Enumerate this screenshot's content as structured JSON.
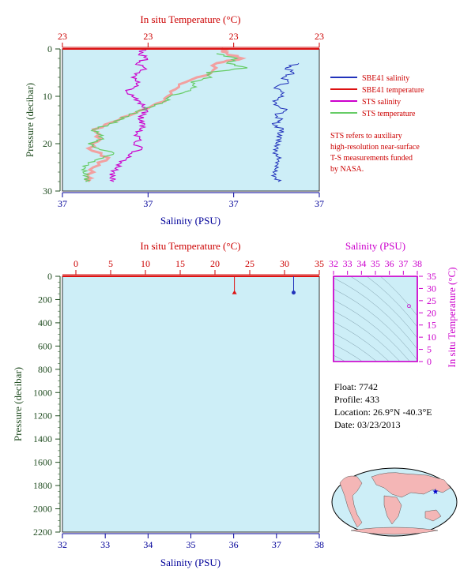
{
  "colors": {
    "plot_bg": "#cdeef7",
    "temp_axis": "#cc0000",
    "sal_axis": "#000099",
    "pressure_axis": "#214d21",
    "sbe_sal": "#2233bb",
    "sbe_temp": "#dd1111",
    "sts_sal": "#cc00cc",
    "sts_temp": "#66cc66",
    "sts_temp_shade": "#f2a0a0",
    "ts_frame": "#cc00cc"
  },
  "top_chart": {
    "temp_axis_title": "In situ Temperature (°C)",
    "temp_ticks": [
      "23",
      "23",
      "23",
      "23"
    ],
    "sal_axis_title": "Salinity (PSU)",
    "sal_ticks": [
      "37",
      "37",
      "37",
      "37"
    ],
    "pressure_axis_title": "Pressure (decibar)",
    "pressure_ticks": [
      "0",
      "10",
      "20",
      "30"
    ]
  },
  "legend": {
    "items": [
      "SBE41 salinity",
      "SBE41 temperature",
      "STS salinity",
      "STS temperature"
    ],
    "note_lines": [
      "STS refers to auxiliary",
      "high-resolution near-surface",
      "T-S measurements funded",
      "by NASA."
    ]
  },
  "bottom_chart": {
    "temp_axis_title": "In situ Temperature (°C)",
    "temp_ticks": [
      "0",
      "5",
      "10",
      "15",
      "20",
      "25",
      "30",
      "35"
    ],
    "sal_axis_title": "Salinity (PSU)",
    "sal_ticks": [
      "32",
      "33",
      "34",
      "35",
      "36",
      "37",
      "38"
    ],
    "pressure_axis_title": "Pressure (decibar)",
    "pressure_ticks": [
      "0",
      "200",
      "400",
      "600",
      "800",
      "1000",
      "1200",
      "1400",
      "1600",
      "1800",
      "2000",
      "2200"
    ]
  },
  "ts_chart": {
    "sal_axis_title": "Salinity (PSU)",
    "sal_ticks": [
      "32",
      "33",
      "34",
      "35",
      "36",
      "37",
      "38"
    ],
    "temp_axis_title": "In situ Temperature (°C)",
    "temp_ticks": [
      "0",
      "5",
      "10",
      "15",
      "20",
      "25",
      "30",
      "35"
    ]
  },
  "info": {
    "float_line": "Float:  7742",
    "profile_line": "Profile:  433",
    "location_line": "Location:  26.9°N  -40.3°E",
    "date_line": "Date:  03/23/2013"
  },
  "chart_data": [
    {
      "type": "line",
      "title": "",
      "xlabel": "Salinity (PSU)",
      "x2label": "In situ Temperature (°C)",
      "ylabel": "Pressure (decibar)",
      "ylim": [
        30,
        0
      ],
      "series": [
        {
          "name": "SBE41 salinity",
          "pressure": [
            3,
            4,
            5,
            6,
            7,
            8,
            9,
            10,
            11,
            12,
            13,
            14,
            15,
            16,
            17,
            18,
            19,
            20,
            21,
            22,
            23,
            24,
            25,
            26,
            27,
            28
          ],
          "rel_value": [
            0.92,
            0.87,
            0.9,
            0.86,
            0.88,
            0.83,
            0.85,
            0.86,
            0.82,
            0.84,
            0.87,
            0.83,
            0.85,
            0.82,
            0.86,
            0.84,
            0.85,
            0.83,
            0.84,
            0.82,
            0.85,
            0.83,
            0.84,
            0.82,
            0.83,
            0.84
          ]
        },
        {
          "name": "SBE41 temperature",
          "pressure": [
            0,
            1,
            2,
            3,
            5,
            7,
            9,
            11,
            13,
            15,
            17,
            19,
            21,
            23,
            25,
            27,
            28
          ],
          "rel_value": [
            0.62,
            0.64,
            0.7,
            0.6,
            0.58,
            0.48,
            0.42,
            0.4,
            0.3,
            0.22,
            0.12,
            0.15,
            0.1,
            0.18,
            0.12,
            0.1,
            0.1
          ]
        },
        {
          "name": "STS salinity",
          "pressure": [
            0,
            1,
            2,
            3,
            4,
            5,
            6,
            7,
            8,
            9,
            10,
            11,
            12,
            13,
            14,
            15,
            16,
            17,
            18,
            19,
            20,
            21,
            22,
            23,
            24,
            25,
            26,
            27,
            28
          ],
          "rel_value": [
            0.32,
            0.3,
            0.33,
            0.29,
            0.32,
            0.3,
            0.27,
            0.3,
            0.28,
            0.25,
            0.27,
            0.3,
            0.31,
            0.33,
            0.31,
            0.3,
            0.32,
            0.3,
            0.29,
            0.3,
            0.28,
            0.31,
            0.27,
            0.25,
            0.23,
            0.21,
            0.2,
            0.19,
            0.2
          ]
        },
        {
          "name": "STS temperature",
          "pressure": [
            1,
            2,
            3,
            4,
            5,
            6,
            7,
            8,
            9,
            10,
            11,
            12,
            13,
            14,
            15,
            16,
            17,
            18,
            19,
            20,
            21,
            22,
            23,
            24,
            25,
            26,
            27,
            28
          ],
          "rel_value": [
            0.6,
            0.68,
            0.64,
            0.72,
            0.56,
            0.58,
            0.5,
            0.52,
            0.48,
            0.42,
            0.4,
            0.36,
            0.3,
            0.26,
            0.22,
            0.18,
            0.12,
            0.14,
            0.16,
            0.1,
            0.14,
            0.2,
            0.16,
            0.1,
            0.09,
            0.08,
            0.1,
            0.09
          ]
        }
      ]
    },
    {
      "type": "line",
      "title": "",
      "xlabel": "Salinity (PSU)",
      "xlim": [
        32,
        38
      ],
      "x2label": "In situ Temperature (°C)",
      "x2lim": [
        0,
        35
      ],
      "ylabel": "Pressure (decibar)",
      "ylim": [
        2200,
        0
      ],
      "series": [
        {
          "name": "SBE41 salinity",
          "x": [
            37.4,
            37.4,
            37.4
          ],
          "pressure": [
            0,
            80,
            140
          ]
        },
        {
          "name": "SBE41 temperature",
          "x": [
            22.8,
            22.8,
            22.8
          ],
          "pressure": [
            0,
            80,
            140
          ]
        }
      ]
    },
    {
      "type": "scatter",
      "title": "",
      "xlabel": "Salinity (PSU)",
      "xlim": [
        32,
        38
      ],
      "ylabel": "In situ Temperature (°C)",
      "ylim": [
        0,
        35
      ],
      "points": [
        {
          "x": 37.4,
          "y": 22.8
        }
      ]
    }
  ]
}
